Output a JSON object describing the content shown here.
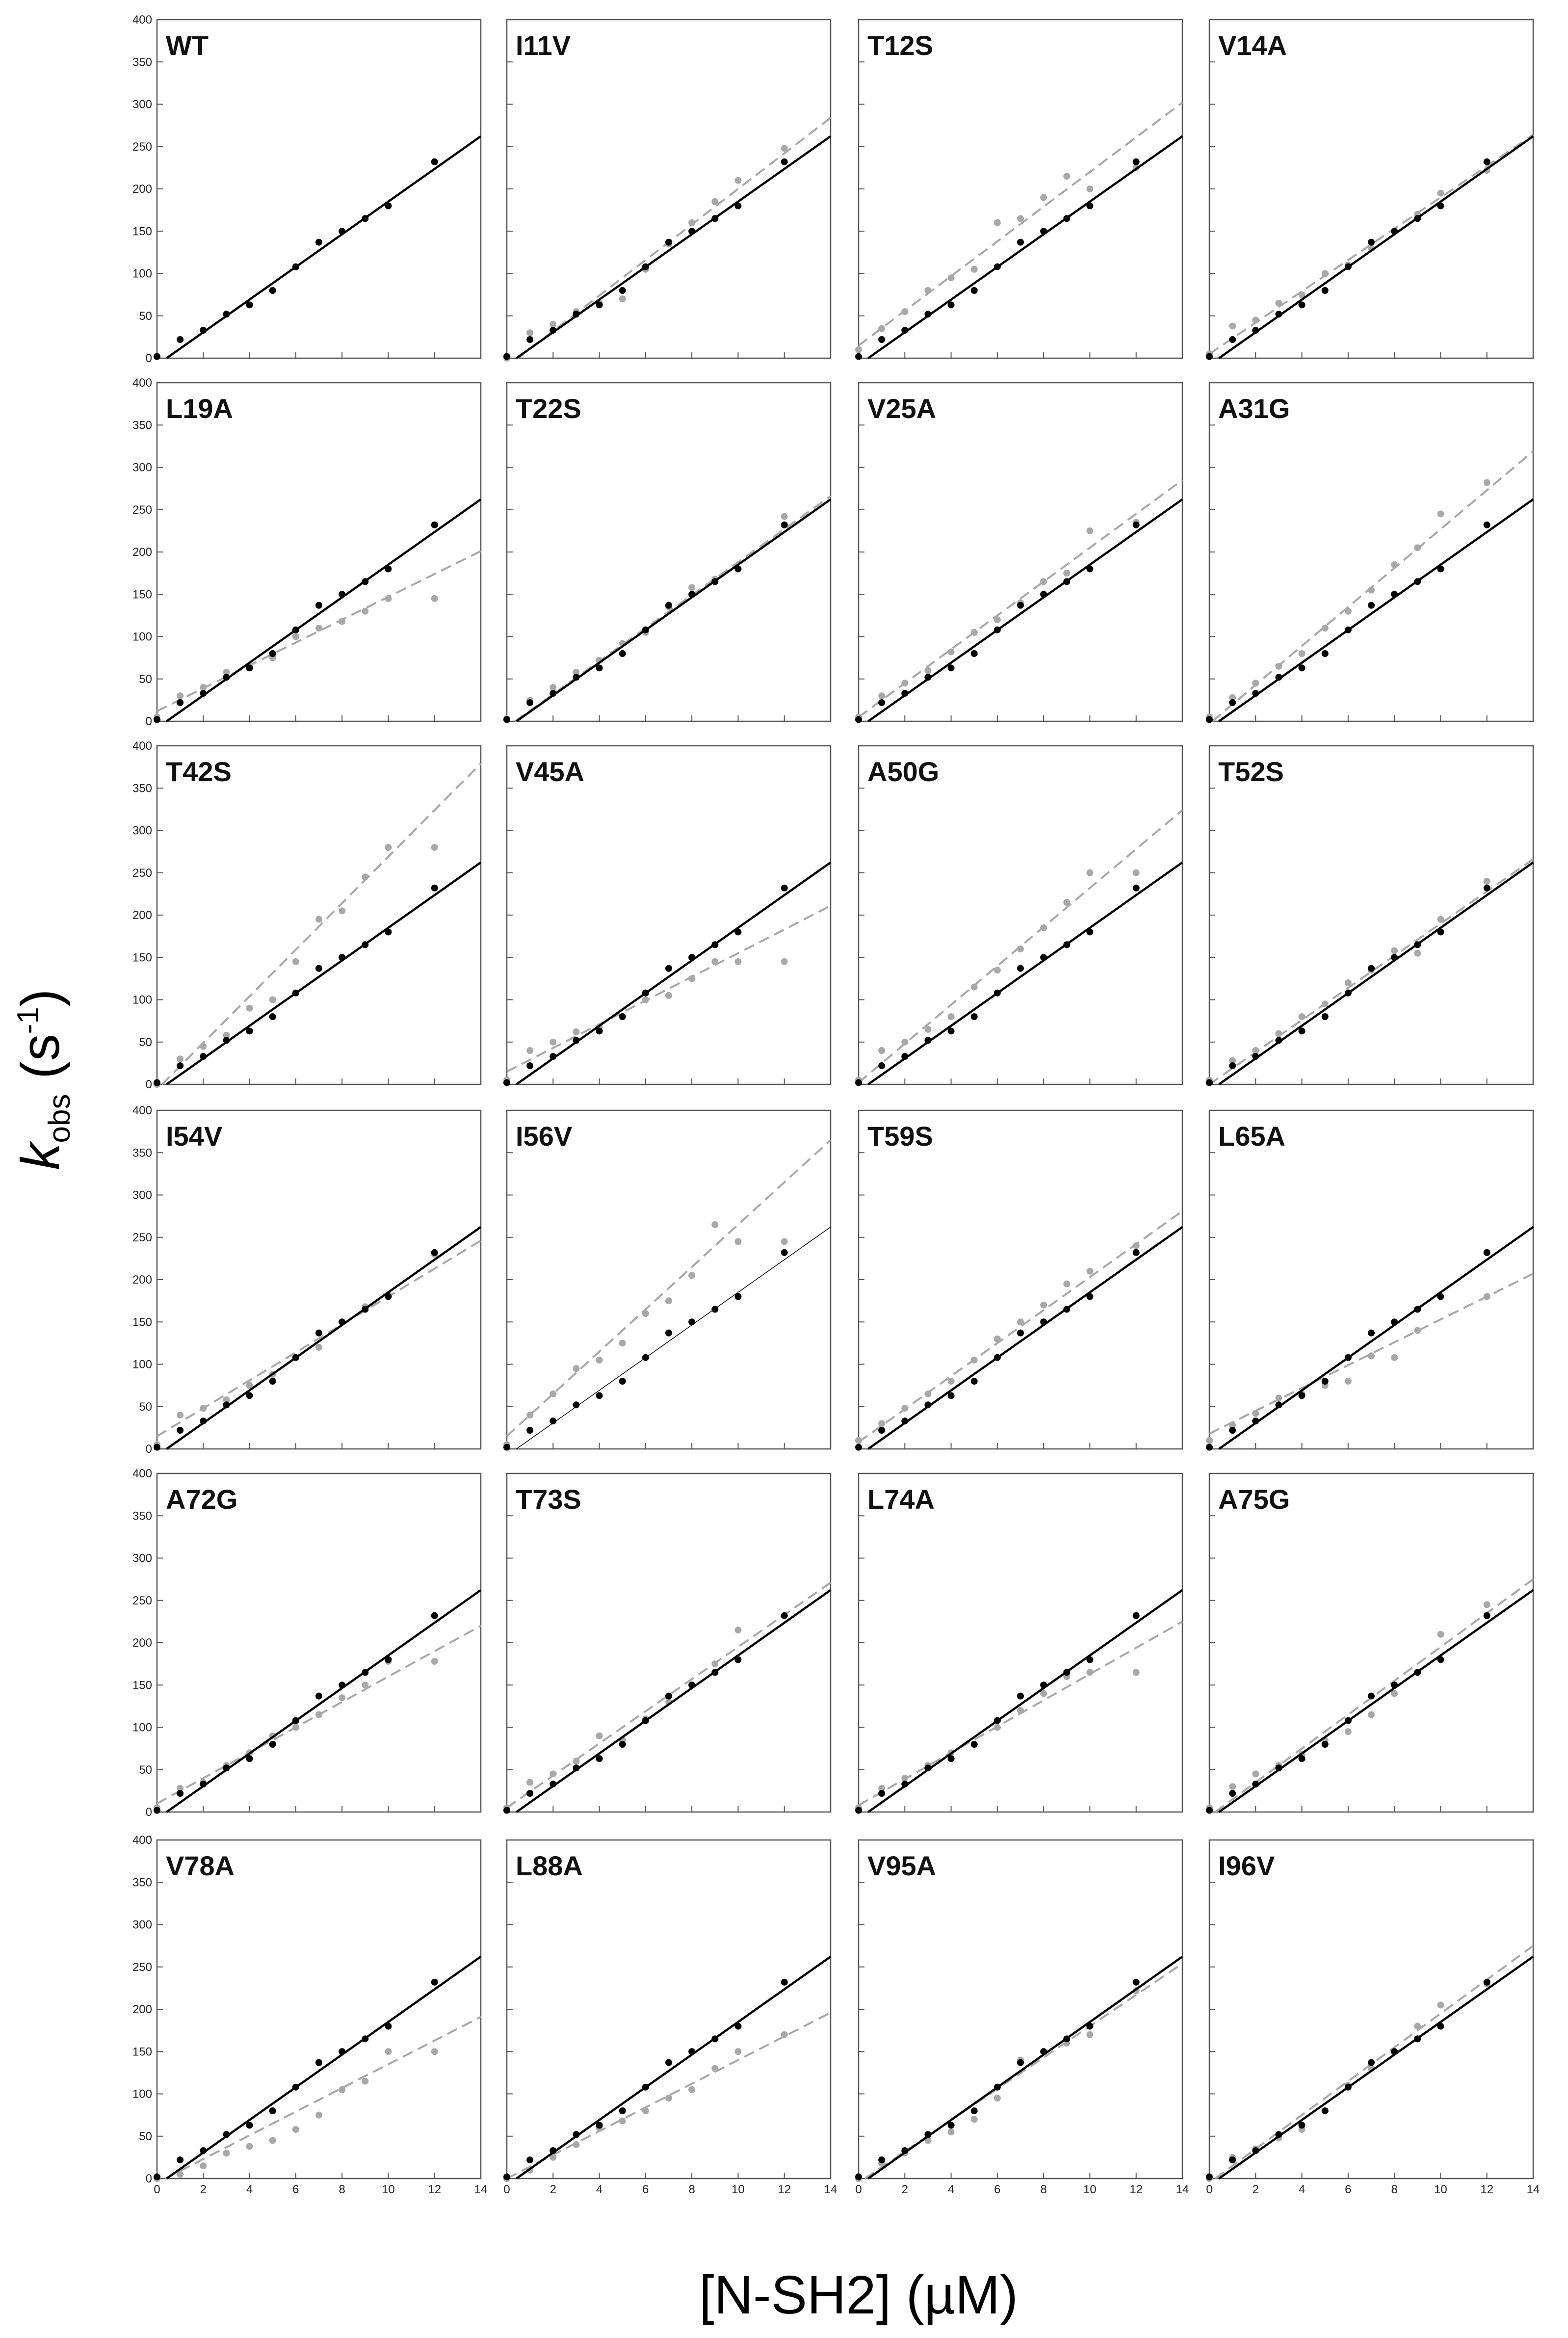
{
  "figure": {
    "ylabel_main": "k",
    "ylabel_sub": "obs",
    "ylabel_unit_open": " (s",
    "ylabel_sup": "-1",
    "ylabel_unit_close": ")",
    "xlabel": "[N-SH2] (µM)"
  },
  "colors": {
    "wild_type": "#000000",
    "mutant": "#a8a8a8",
    "frame": "#555555",
    "background": "#ffffff"
  },
  "chart_data": {
    "type": "scatter",
    "layout": "6 rows x 4 columns small multiples with shared axes",
    "x_axis": {
      "label": "[N-SH2] (µM)",
      "range": [
        0,
        14
      ],
      "ticks": [
        0,
        2,
        4,
        6,
        8,
        10,
        12,
        14
      ]
    },
    "y_axis": {
      "label": "kobs (s-1)",
      "range": [
        0,
        400
      ],
      "ticks": [
        0,
        50,
        100,
        150,
        200,
        250,
        300,
        350,
        400
      ]
    },
    "grid": false,
    "x_values": [
      0,
      1,
      2,
      3,
      4,
      5,
      6,
      7,
      8,
      9,
      10,
      12
    ],
    "reference": {
      "description": "wild-type: black points with solid black fit line, repeated in every mutant panel",
      "y": [
        2,
        22,
        33,
        52,
        63,
        80,
        108,
        137,
        150,
        165,
        180,
        232
      ],
      "fit": {
        "slope": 19.3,
        "intercept": -8
      }
    },
    "panels": [
      {
        "title": "WT",
        "mutant": null
      },
      {
        "title": "I11V",
        "mutant": {
          "y": [
            0,
            30,
            40,
            55,
            65,
            70,
            105,
            135,
            160,
            185,
            210,
            248
          ],
          "fit": {
            "slope": 21.0,
            "intercept": -10
          }
        }
      },
      {
        "title": "T12S",
        "mutant": {
          "y": [
            10,
            35,
            55,
            80,
            95,
            105,
            160,
            165,
            190,
            215,
            200,
            225
          ],
          "fit": {
            "slope": 20.5,
            "intercept": 15
          }
        }
      },
      {
        "title": "V14A",
        "mutant": {
          "y": [
            5,
            38,
            45,
            65,
            75,
            100,
            110,
            130,
            150,
            170,
            195,
            222
          ],
          "fit": {
            "slope": 18.5,
            "intercept": 5
          }
        }
      },
      {
        "title": "L19A",
        "mutant": {
          "y": [
            5,
            30,
            40,
            58,
            65,
            75,
            100,
            110,
            118,
            130,
            145,
            145
          ],
          "fit": {
            "slope": 13.5,
            "intercept": 12
          }
        }
      },
      {
        "title": "T22S",
        "mutant": {
          "y": [
            3,
            25,
            40,
            58,
            72,
            92,
            105,
            135,
            158,
            168,
            180,
            242
          ],
          "fit": {
            "slope": 19.5,
            "intercept": -7
          }
        }
      },
      {
        "title": "V25A",
        "mutant": {
          "y": [
            5,
            30,
            45,
            60,
            82,
            105,
            120,
            140,
            165,
            175,
            225,
            235
          ],
          "fit": {
            "slope": 20.0,
            "intercept": 5
          }
        }
      },
      {
        "title": "A31G",
        "mutant": {
          "y": [
            5,
            28,
            45,
            65,
            80,
            110,
            130,
            155,
            185,
            205,
            245,
            282
          ],
          "fit": {
            "slope": 23.0,
            "intercept": -3
          }
        }
      },
      {
        "title": "T42S",
        "mutant": {
          "y": [
            0,
            30,
            45,
            58,
            90,
            100,
            145,
            195,
            205,
            245,
            280,
            280
          ],
          "fit": {
            "slope": 27.5,
            "intercept": -6
          }
        }
      },
      {
        "title": "V45A",
        "mutant": {
          "y": [
            5,
            40,
            50,
            62,
            68,
            80,
            100,
            105,
            125,
            145,
            145,
            145
          ],
          "fit": {
            "slope": 14.0,
            "intercept": 15
          }
        }
      },
      {
        "title": "A50G",
        "mutant": {
          "y": [
            5,
            40,
            50,
            65,
            80,
            115,
            135,
            160,
            185,
            215,
            250,
            250
          ],
          "fit": {
            "slope": 23.0,
            "intercept": 2
          }
        }
      },
      {
        "title": "T52S",
        "mutant": {
          "y": [
            5,
            28,
            40,
            60,
            80,
            95,
            120,
            135,
            158,
            155,
            195,
            240
          ],
          "fit": {
            "slope": 19.0,
            "intercept": 0
          }
        }
      },
      {
        "title": "I54V",
        "mutant": {
          "y": [
            5,
            40,
            48,
            58,
            75,
            88,
            108,
            120,
            150,
            168,
            182,
            230
          ],
          "fit": {
            "slope": 16.5,
            "intercept": 15
          }
        }
      },
      {
        "title": "I56V",
        "mutant": {
          "y": [
            5,
            40,
            65,
            95,
            105,
            125,
            160,
            175,
            205,
            265,
            245,
            245
          ],
          "fit": {
            "slope": 25.0,
            "intercept": 15
          }
        }
      },
      {
        "title": "T59S",
        "mutant": {
          "y": [
            10,
            30,
            48,
            65,
            80,
            105,
            130,
            150,
            170,
            195,
            210,
            240
          ],
          "fit": {
            "slope": 19.5,
            "intercept": 8
          }
        }
      },
      {
        "title": "L65A",
        "mutant": {
          "y": [
            10,
            28,
            42,
            60,
            65,
            75,
            80,
            110,
            108,
            140,
            180,
            180
          ],
          "fit": {
            "slope": 13.5,
            "intercept": 18
          }
        }
      },
      {
        "title": "A72G",
        "mutant": {
          "y": [
            5,
            28,
            35,
            55,
            70,
            90,
            100,
            115,
            135,
            150,
            178,
            178
          ],
          "fit": {
            "slope": 15.0,
            "intercept": 10
          }
        }
      },
      {
        "title": "T73S",
        "mutant": {
          "y": [
            5,
            35,
            45,
            60,
            90,
            85,
            110,
            130,
            150,
            175,
            215,
            232
          ],
          "fit": {
            "slope": 19.0,
            "intercept": 5
          }
        }
      },
      {
        "title": "L74A",
        "mutant": {
          "y": [
            5,
            28,
            40,
            55,
            70,
            80,
            100,
            120,
            140,
            160,
            165,
            165
          ],
          "fit": {
            "slope": 15.5,
            "intercept": 8
          }
        }
      },
      {
        "title": "A75G",
        "mutant": {
          "y": [
            5,
            30,
            45,
            55,
            68,
            85,
            95,
            115,
            140,
            165,
            210,
            245
          ],
          "fit": {
            "slope": 20.0,
            "intercept": -5
          }
        }
      },
      {
        "title": "V78A",
        "mutant": {
          "y": [
            0,
            5,
            15,
            30,
            38,
            45,
            58,
            75,
            105,
            115,
            150,
            150
          ],
          "fit": {
            "slope": 14.0,
            "intercept": -5
          }
        }
      },
      {
        "title": "L88A",
        "mutant": {
          "y": [
            0,
            10,
            25,
            40,
            60,
            68,
            80,
            95,
            105,
            130,
            150,
            170
          ],
          "fit": {
            "slope": 14.0,
            "intercept": 0
          }
        }
      },
      {
        "title": "V95A",
        "mutant": {
          "y": [
            0,
            18,
            30,
            45,
            55,
            70,
            95,
            140,
            150,
            160,
            170,
            222
          ],
          "fit": {
            "slope": 18.5,
            "intercept": -5
          }
        }
      },
      {
        "title": "I96V",
        "mutant": {
          "y": [
            0,
            25,
            35,
            48,
            58,
            80,
            110,
            130,
            150,
            180,
            205,
            230
          ],
          "fit": {
            "slope": 20.0,
            "intercept": -5
          }
        }
      }
    ]
  }
}
